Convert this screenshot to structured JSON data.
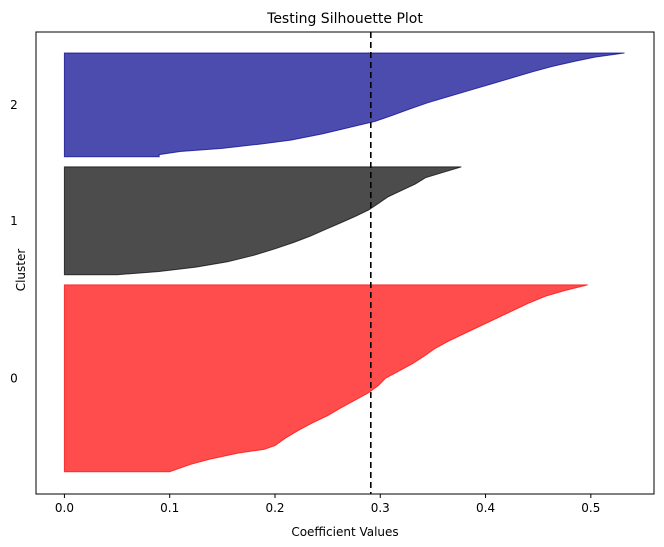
{
  "chart_data": {
    "type": "area",
    "title": "Testing Silhouette Plot",
    "xlabel": "Coefficient Values",
    "ylabel": "Cluster",
    "xlim": [
      -0.027,
      0.56
    ],
    "x_ticks": [
      0.0,
      0.1,
      0.2,
      0.3,
      0.4,
      0.5
    ],
    "x_tick_labels": [
      "0.0",
      "0.1",
      "0.2",
      "0.3",
      "0.4",
      "0.5"
    ],
    "grid": false,
    "average_silhouette": 0.291,
    "clusters": [
      {
        "label": "0",
        "color": "#ff0000",
        "opacity": 0.7,
        "y_lower": 10,
        "y_upper": 192,
        "profile": [
          [
            0.0,
            0.497
          ],
          [
            0.03,
            0.475
          ],
          [
            0.06,
            0.457
          ],
          [
            0.1,
            0.44
          ],
          [
            0.14,
            0.425
          ],
          [
            0.18,
            0.41
          ],
          [
            0.22,
            0.395
          ],
          [
            0.26,
            0.38
          ],
          [
            0.3,
            0.365
          ],
          [
            0.34,
            0.352
          ],
          [
            0.38,
            0.342
          ],
          [
            0.42,
            0.331
          ],
          [
            0.46,
            0.318
          ],
          [
            0.5,
            0.305
          ],
          [
            0.54,
            0.298
          ],
          [
            0.58,
            0.288
          ],
          [
            0.62,
            0.275
          ],
          [
            0.66,
            0.262
          ],
          [
            0.7,
            0.25
          ],
          [
            0.74,
            0.235
          ],
          [
            0.78,
            0.222
          ],
          [
            0.82,
            0.21
          ],
          [
            0.86,
            0.2
          ],
          [
            0.88,
            0.19
          ],
          [
            0.9,
            0.165
          ],
          [
            0.93,
            0.14
          ],
          [
            0.96,
            0.12
          ],
          [
            1.0,
            0.1
          ]
        ]
      },
      {
        "label": "1",
        "color": "#000000",
        "opacity": 0.7,
        "y_lower": 202,
        "y_upper": 307,
        "profile": [
          [
            0.0,
            0.377
          ],
          [
            0.05,
            0.36
          ],
          [
            0.1,
            0.343
          ],
          [
            0.16,
            0.333
          ],
          [
            0.22,
            0.32
          ],
          [
            0.28,
            0.307
          ],
          [
            0.34,
            0.298
          ],
          [
            0.4,
            0.289
          ],
          [
            0.46,
            0.276
          ],
          [
            0.52,
            0.262
          ],
          [
            0.58,
            0.248
          ],
          [
            0.64,
            0.234
          ],
          [
            0.7,
            0.218
          ],
          [
            0.76,
            0.2
          ],
          [
            0.82,
            0.18
          ],
          [
            0.88,
            0.155
          ],
          [
            0.93,
            0.125
          ],
          [
            0.97,
            0.09
          ],
          [
            1.0,
            0.05
          ]
        ]
      },
      {
        "label": "2",
        "color": "#00008b",
        "opacity": 0.7,
        "y_lower": 317,
        "y_upper": 418,
        "profile": [
          [
            0.0,
            0.532
          ],
          [
            0.04,
            0.504
          ],
          [
            0.08,
            0.485
          ],
          [
            0.13,
            0.463
          ],
          [
            0.18,
            0.445
          ],
          [
            0.24,
            0.425
          ],
          [
            0.3,
            0.405
          ],
          [
            0.36,
            0.385
          ],
          [
            0.42,
            0.365
          ],
          [
            0.48,
            0.345
          ],
          [
            0.54,
            0.328
          ],
          [
            0.6,
            0.312
          ],
          [
            0.66,
            0.295
          ],
          [
            0.72,
            0.27
          ],
          [
            0.78,
            0.245
          ],
          [
            0.84,
            0.215
          ],
          [
            0.88,
            0.185
          ],
          [
            0.92,
            0.15
          ],
          [
            0.95,
            0.11
          ],
          [
            0.98,
            0.09
          ],
          [
            1.0,
            0.09
          ]
        ]
      }
    ]
  }
}
